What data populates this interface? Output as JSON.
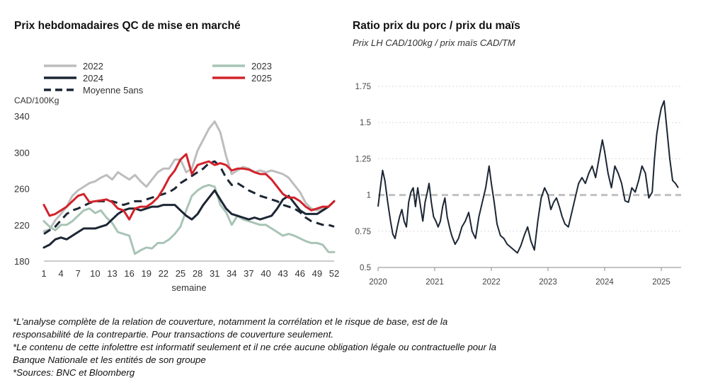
{
  "chart_data": [
    {
      "type": "line",
      "title": "Prix hebdomadaires QC de mise en marché",
      "ylabel": "CAD/100Kg",
      "xlabel": "semaine",
      "x_ticks": [
        "1",
        "4",
        "7",
        "10",
        "13",
        "16",
        "19",
        "22",
        "25",
        "28",
        "31",
        "34",
        "37",
        "40",
        "43",
        "46",
        "49",
        "52"
      ],
      "x_range": [
        1,
        52
      ],
      "y_ticks": [
        "340",
        "300",
        "260",
        "220",
        "180"
      ],
      "ylim": [
        180,
        340
      ],
      "legend": "top, two columns",
      "series": [
        {
          "name": "2022",
          "color": "#bdbdbd",
          "dashed": false,
          "x": [
            1,
            2,
            3,
            4,
            5,
            6,
            7,
            8,
            9,
            10,
            11,
            12,
            13,
            14,
            15,
            16,
            17,
            18,
            19,
            20,
            21,
            22,
            23,
            24,
            25,
            26,
            27,
            28,
            29,
            30,
            31,
            32,
            33,
            34,
            35,
            36,
            37,
            38,
            39,
            40,
            41,
            42,
            43,
            44,
            45,
            46,
            47,
            48,
            49,
            50,
            51,
            52
          ],
          "values": [
            213,
            215,
            225,
            232,
            240,
            252,
            258,
            262,
            266,
            268,
            272,
            275,
            270,
            278,
            274,
            270,
            275,
            268,
            262,
            270,
            278,
            282,
            282,
            292,
            292,
            278,
            282,
            302,
            314,
            326,
            334,
            322,
            296,
            276,
            280,
            284,
            282,
            278,
            280,
            278,
            280,
            278,
            276,
            272,
            264,
            256,
            244,
            238,
            236,
            238,
            240,
            246
          ]
        },
        {
          "name": "2023",
          "color": "#a8c4b6",
          "dashed": false,
          "x": [
            1,
            2,
            3,
            4,
            5,
            6,
            7,
            8,
            9,
            10,
            11,
            12,
            13,
            14,
            15,
            16,
            17,
            18,
            19,
            20,
            21,
            22,
            23,
            24,
            25,
            26,
            27,
            28,
            29,
            30,
            31,
            32,
            33,
            34,
            35,
            36,
            37,
            38,
            39,
            40,
            41,
            42,
            43,
            44,
            45,
            46,
            47,
            48,
            49,
            50,
            51,
            52
          ],
          "values": [
            224,
            218,
            214,
            220,
            220,
            224,
            230,
            236,
            238,
            233,
            236,
            228,
            222,
            212,
            210,
            208,
            188,
            192,
            195,
            194,
            200,
            200,
            204,
            210,
            218,
            236,
            252,
            258,
            262,
            264,
            262,
            242,
            234,
            220,
            230,
            226,
            224,
            222,
            220,
            220,
            216,
            212,
            208,
            210,
            208,
            205,
            202,
            200,
            200,
            198,
            190,
            190
          ]
        },
        {
          "name": "2024",
          "color": "#1c2634",
          "dashed": false,
          "x": [
            1,
            2,
            3,
            4,
            5,
            6,
            7,
            8,
            9,
            10,
            11,
            12,
            13,
            14,
            15,
            16,
            17,
            18,
            19,
            20,
            21,
            22,
            23,
            24,
            25,
            26,
            27,
            28,
            29,
            30,
            31,
            32,
            33,
            34,
            35,
            36,
            37,
            38,
            39,
            40,
            41,
            42,
            43,
            44,
            45,
            46,
            47,
            48,
            49,
            50,
            51,
            52
          ],
          "values": [
            195,
            198,
            204,
            206,
            204,
            208,
            212,
            216,
            216,
            216,
            218,
            220,
            226,
            232,
            236,
            238,
            238,
            236,
            238,
            240,
            240,
            242,
            242,
            242,
            236,
            230,
            226,
            232,
            242,
            250,
            258,
            248,
            238,
            232,
            230,
            228,
            226,
            228,
            226,
            228,
            230,
            238,
            248,
            252,
            244,
            236,
            232,
            232,
            232,
            236,
            240,
            246
          ]
        },
        {
          "name": "2025",
          "color": "#d2232a",
          "dashed": false,
          "x": [
            1,
            2,
            3,
            4,
            5,
            6,
            7,
            8,
            9,
            10,
            11,
            12,
            13,
            14,
            15,
            16,
            17,
            18,
            19,
            20,
            21,
            22,
            23,
            24,
            25,
            26,
            27,
            28,
            29,
            30,
            31,
            32,
            33,
            34,
            35,
            36,
            37,
            38,
            39,
            40,
            41,
            42,
            43,
            44,
            45,
            46,
            47,
            48,
            49,
            50,
            51,
            52
          ],
          "values": [
            242,
            230,
            232,
            236,
            240,
            246,
            252,
            254,
            245,
            246,
            247,
            248,
            245,
            238,
            236,
            226,
            238,
            240,
            240,
            244,
            250,
            260,
            272,
            280,
            292,
            298,
            276,
            286,
            288,
            290,
            286,
            288,
            286,
            280,
            282,
            282,
            281,
            278,
            276,
            276,
            270,
            262,
            254,
            250,
            250,
            246,
            240,
            236,
            238,
            240,
            240,
            246
          ]
        },
        {
          "name": "Moyenne 5ans",
          "color": "#1c2634",
          "dashed": true,
          "x": [
            1,
            2,
            3,
            4,
            5,
            6,
            7,
            8,
            9,
            10,
            11,
            12,
            13,
            14,
            15,
            16,
            17,
            18,
            19,
            20,
            21,
            22,
            23,
            24,
            25,
            26,
            27,
            28,
            29,
            30,
            31,
            32,
            33,
            34,
            35,
            36,
            37,
            38,
            39,
            40,
            41,
            42,
            43,
            44,
            45,
            46,
            47,
            48,
            49,
            50,
            51,
            52
          ],
          "values": [
            210,
            214,
            218,
            225,
            232,
            236,
            238,
            241,
            244,
            246,
            246,
            246,
            246,
            244,
            242,
            244,
            246,
            246,
            248,
            250,
            252,
            254,
            256,
            260,
            266,
            270,
            274,
            278,
            282,
            288,
            290,
            284,
            272,
            264,
            266,
            262,
            258,
            255,
            252,
            250,
            248,
            246,
            242,
            240,
            238,
            234,
            228,
            224,
            222,
            220,
            220,
            218
          ]
        }
      ]
    },
    {
      "type": "line",
      "title": "Ratio prix du porc / prix du maïs",
      "subtitle": "Prix LH CAD/100kg / prix maïs CAD/TM",
      "x_ticks": [
        "2020",
        "2021",
        "2022",
        "2023",
        "2024",
        "2025"
      ],
      "x_range": [
        2020,
        2025.35
      ],
      "y_ticks": [
        "1.75",
        "1.5",
        "1.25",
        "1",
        "0.75",
        "0.5"
      ],
      "ylim": [
        0.5,
        1.75
      ],
      "reference_line": {
        "value": 1.0,
        "color": "#c0c0c0",
        "dashed": true
      },
      "series": [
        {
          "name": "",
          "color": "#1c2634",
          "x": [
            2020.0,
            2020.04,
            2020.08,
            2020.12,
            2020.17,
            2020.22,
            2020.26,
            2020.3,
            2020.34,
            2020.38,
            2020.42,
            2020.46,
            2020.5,
            2020.54,
            2020.58,
            2020.62,
            2020.66,
            2020.7,
            2020.75,
            2020.79,
            2020.83,
            2020.87,
            2020.9,
            2020.94,
            2020.98,
            2021.02,
            2021.06,
            2021.1,
            2021.14,
            2021.18,
            2021.22,
            2021.26,
            2021.3,
            2021.36,
            2021.42,
            2021.48,
            2021.54,
            2021.6,
            2021.66,
            2021.72,
            2021.78,
            2021.84,
            2021.9,
            2021.96,
            2022.0,
            2022.05,
            2022.1,
            2022.16,
            2022.22,
            2022.28,
            2022.34,
            2022.4,
            2022.46,
            2022.52,
            2022.58,
            2022.64,
            2022.7,
            2022.76,
            2022.82,
            2022.88,
            2022.94,
            2023.0,
            2023.05,
            2023.1,
            2023.15,
            2023.2,
            2023.25,
            2023.3,
            2023.36,
            2023.42,
            2023.48,
            2023.54,
            2023.6,
            2023.66,
            2023.72,
            2023.78,
            2023.84,
            2023.9,
            2023.96,
            2024.0,
            2024.06,
            2024.12,
            2024.18,
            2024.24,
            2024.3,
            2024.36,
            2024.42,
            2024.48,
            2024.54,
            2024.6,
            2024.66,
            2024.72,
            2024.78,
            2024.84,
            2024.88,
            2024.92,
            2024.96,
            2025.0,
            2025.05,
            2025.1,
            2025.15,
            2025.2,
            2025.25,
            2025.3
          ],
          "values": [
            0.92,
            1.05,
            1.17,
            1.1,
            0.95,
            0.82,
            0.73,
            0.7,
            0.78,
            0.85,
            0.9,
            0.82,
            0.78,
            0.95,
            1.02,
            1.05,
            0.92,
            1.05,
            0.92,
            0.82,
            0.95,
            1.02,
            1.08,
            0.95,
            0.85,
            0.82,
            0.78,
            0.82,
            0.92,
            0.98,
            0.85,
            0.78,
            0.72,
            0.66,
            0.7,
            0.78,
            0.82,
            0.88,
            0.75,
            0.7,
            0.85,
            0.95,
            1.05,
            1.2,
            1.08,
            0.95,
            0.8,
            0.72,
            0.7,
            0.66,
            0.64,
            0.62,
            0.6,
            0.65,
            0.72,
            0.78,
            0.68,
            0.62,
            0.82,
            0.98,
            1.05,
            1.0,
            0.9,
            0.95,
            0.98,
            0.92,
            0.85,
            0.8,
            0.78,
            0.88,
            0.98,
            1.08,
            1.12,
            1.08,
            1.15,
            1.2,
            1.12,
            1.25,
            1.38,
            1.3,
            1.15,
            1.05,
            1.2,
            1.15,
            1.08,
            0.96,
            0.95,
            1.05,
            1.02,
            1.1,
            1.2,
            1.15,
            0.98,
            1.02,
            1.25,
            1.42,
            1.52,
            1.6,
            1.65,
            1.45,
            1.25,
            1.1,
            1.08,
            1.05
          ]
        }
      ]
    }
  ],
  "footnotes": [
    "*L’analyse complète de la relation de couverture, notamment la corrélation et le risque de base, est de la",
    "responsabilité de la contrepartie. Pour transactions de couverture seulement.",
    "*Le contenu de cette infolettre est informatif seulement et il ne crée aucune obligation légale ou contractuelle pour la",
    "Banque Nationale et les entités de son groupe",
    "*Sources: BNC et Bloomberg"
  ]
}
